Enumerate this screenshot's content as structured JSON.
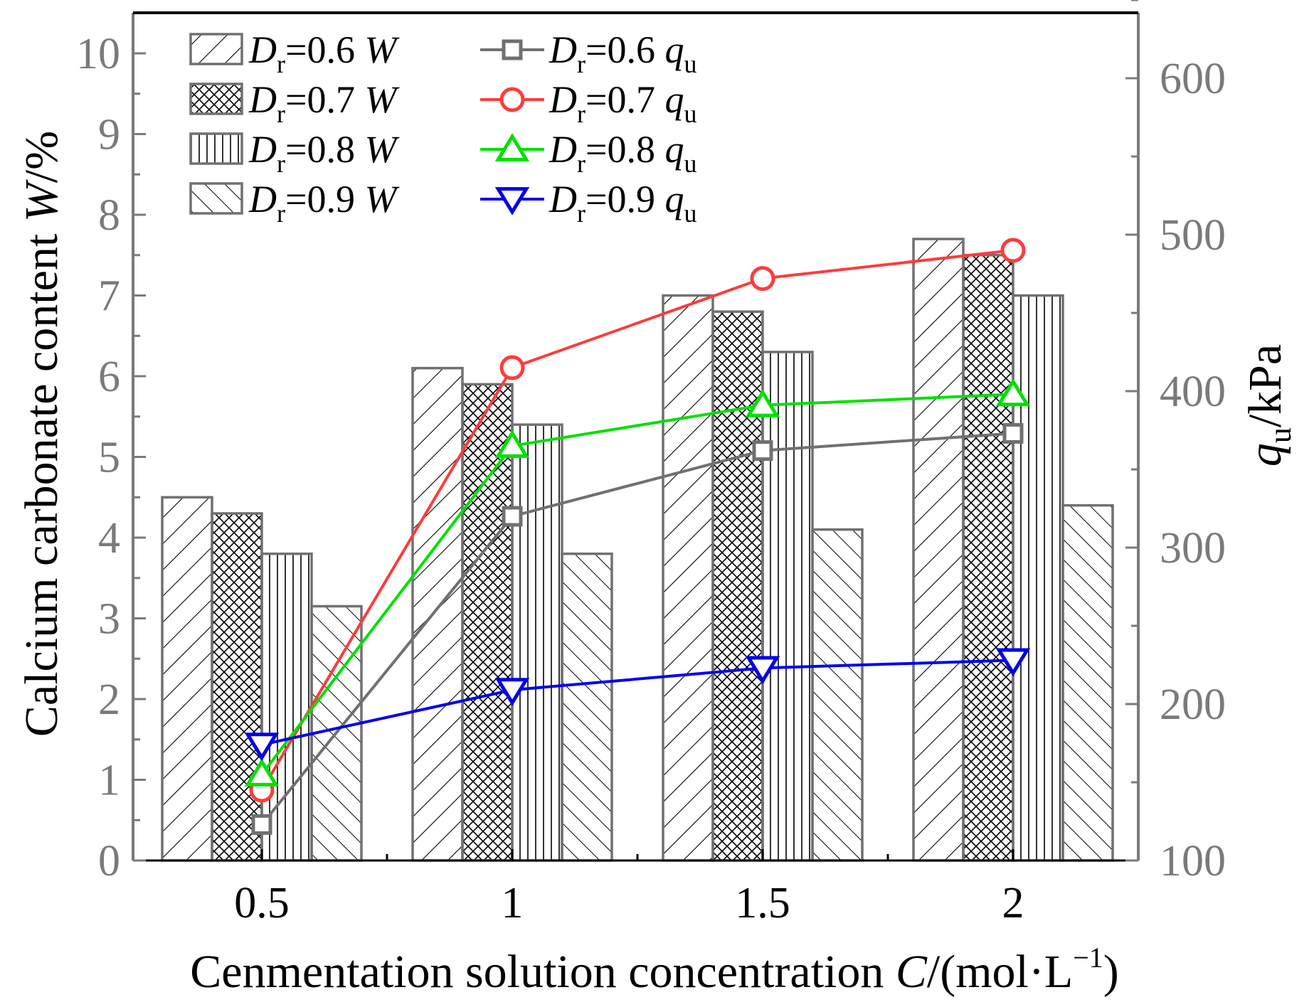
{
  "chart_data": {
    "type": "bar+line",
    "categories": [
      "0.5",
      "1",
      "1.5",
      "2"
    ],
    "x": [
      0.5,
      1,
      1.5,
      2
    ],
    "xlabel": {
      "text": "Cenmentation solution concentration ",
      "variable": "C",
      "unit_open": "/(mol·L",
      "exponent": "−1",
      "unit_close": ")"
    },
    "ylabel_left": {
      "text": "Calcium carbonate content ",
      "variable": "W",
      "unit": "/%"
    },
    "ylabel_right": {
      "variable": "q",
      "subscript": "u",
      "unit": "/kPa"
    },
    "ylim_left": [
      0,
      10.5
    ],
    "ylim_right": [
      100,
      650
    ],
    "yticks_left": [
      "0",
      "1",
      "2",
      "3",
      "4",
      "5",
      "6",
      "7",
      "8",
      "9",
      "10"
    ],
    "yticks_right": [
      "100",
      "200",
      "300",
      "400",
      "500",
      "600"
    ],
    "bar_series": [
      {
        "name": "Dr=0.6 W",
        "prefix": "D",
        "sub": "r",
        "eq": "=0.6 ",
        "var": "W",
        "pattern": "diag-right",
        "values": [
          4.5,
          6.1,
          7.0,
          7.7
        ]
      },
      {
        "name": "Dr=0.7 W",
        "prefix": "D",
        "sub": "r",
        "eq": "=0.7 ",
        "var": "W",
        "pattern": "cross-hatch",
        "values": [
          4.3,
          5.9,
          6.8,
          7.5
        ]
      },
      {
        "name": "Dr=0.8 W",
        "prefix": "D",
        "sub": "r",
        "eq": "=0.8 ",
        "var": "W",
        "pattern": "vertical",
        "values": [
          3.8,
          5.4,
          6.3,
          7.0
        ]
      },
      {
        "name": "Dr=0.9 W",
        "prefix": "D",
        "sub": "r",
        "eq": "=0.9 ",
        "var": "W",
        "pattern": "diag-left",
        "values": [
          3.15,
          3.8,
          4.1,
          4.4
        ]
      }
    ],
    "line_series": [
      {
        "name": "Dr=0.6 qu",
        "prefix": "D",
        "sub": "r",
        "eq": "=0.6 ",
        "var": "q",
        "varsub": "u",
        "color": "#707070",
        "marker": "square",
        "values": [
          123,
          320,
          362,
          373
        ]
      },
      {
        "name": "Dr=0.7 qu",
        "prefix": "D",
        "sub": "r",
        "eq": "=0.7 ",
        "var": "q",
        "varsub": "u",
        "color": "#ff3b3b",
        "marker": "circle",
        "values": [
          145,
          415,
          472,
          490
        ]
      },
      {
        "name": "Dr=0.8 qu",
        "prefix": "D",
        "sub": "r",
        "eq": "=0.8 ",
        "var": "q",
        "varsub": "u",
        "color": "#00e000",
        "marker": "triangle-up",
        "values": [
          155,
          365,
          391,
          398
        ]
      },
      {
        "name": "Dr=0.9 qu",
        "prefix": "D",
        "sub": "r",
        "eq": "=0.9 ",
        "var": "q",
        "varsub": "u",
        "color": "#0000ee",
        "marker": "triangle-down",
        "values": [
          174,
          209,
          223,
          228
        ]
      }
    ],
    "legend_placement": "top-left",
    "grid": false
  },
  "colors": {
    "axis_gray": "#7a7a7a",
    "bar_stroke": "#707070",
    "axis_black": "#000000"
  }
}
